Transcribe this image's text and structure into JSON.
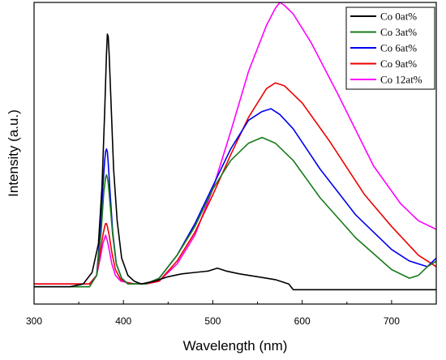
{
  "chart_data": {
    "type": "line",
    "title": "",
    "xlabel": "Wavelength (nm)",
    "ylabel": "Intensity (a.u.)",
    "xlim": [
      300,
      750
    ],
    "ylim": [
      -0.05,
      1.0
    ],
    "x_ticks": [
      300,
      400,
      500,
      600,
      700
    ],
    "x_tick_labels": [
      "300",
      "400",
      "500",
      "600",
      "700"
    ],
    "y_ticks_shown": false,
    "grid": false,
    "legend_position": "top-right",
    "series": [
      {
        "name": "Co 0at%",
        "color": "#000000",
        "x": [
          300,
          340,
          355,
          365,
          372,
          376,
          379,
          381,
          382,
          383,
          384,
          386,
          389,
          393,
          398,
          405,
          412,
          420,
          435,
          450,
          465,
          480,
          495,
          505,
          515,
          530,
          550,
          570,
          585,
          590,
          600,
          650,
          700,
          750
        ],
        "y": [
          0.01,
          0.01,
          0.02,
          0.06,
          0.16,
          0.36,
          0.62,
          0.82,
          0.89,
          0.88,
          0.82,
          0.66,
          0.42,
          0.24,
          0.11,
          0.05,
          0.03,
          0.02,
          0.03,
          0.045,
          0.055,
          0.06,
          0.065,
          0.075,
          0.065,
          0.055,
          0.045,
          0.035,
          0.02,
          0.0,
          0.0,
          0.0,
          0.0,
          0.0
        ]
      },
      {
        "name": "Co 3at%",
        "color": "#1a7a1a",
        "x": [
          300,
          340,
          362,
          370,
          375,
          378,
          380,
          381,
          382,
          383,
          385,
          388,
          392,
          398,
          405,
          415,
          425,
          440,
          460,
          480,
          500,
          520,
          540,
          555,
          570,
          590,
          620,
          660,
          700,
          720,
          730,
          740,
          750
        ],
        "y": [
          0.01,
          0.01,
          0.01,
          0.05,
          0.2,
          0.34,
          0.39,
          0.4,
          0.39,
          0.37,
          0.3,
          0.19,
          0.09,
          0.04,
          0.02,
          0.02,
          0.02,
          0.04,
          0.12,
          0.22,
          0.35,
          0.45,
          0.51,
          0.53,
          0.51,
          0.45,
          0.32,
          0.18,
          0.07,
          0.04,
          0.05,
          0.08,
          0.1
        ]
      },
      {
        "name": "Co 6at%",
        "color": "#0000ee",
        "x": [
          300,
          340,
          362,
          370,
          374,
          377,
          379,
          380,
          381,
          382,
          383,
          385,
          388,
          392,
          398,
          405,
          415,
          425,
          440,
          460,
          480,
          500,
          520,
          540,
          555,
          565,
          575,
          590,
          620,
          660,
          700,
          720,
          740,
          750
        ],
        "y": [
          0.01,
          0.01,
          0.01,
          0.05,
          0.2,
          0.36,
          0.45,
          0.48,
          0.49,
          0.48,
          0.44,
          0.34,
          0.2,
          0.09,
          0.04,
          0.02,
          0.02,
          0.02,
          0.04,
          0.12,
          0.23,
          0.36,
          0.49,
          0.59,
          0.62,
          0.63,
          0.61,
          0.56,
          0.42,
          0.26,
          0.14,
          0.1,
          0.08,
          0.11
        ]
      },
      {
        "name": "Co 9at%",
        "color": "#ee0000",
        "x": [
          300,
          340,
          362,
          370,
          374,
          377,
          379,
          380,
          381,
          382,
          384,
          387,
          391,
          397,
          404,
          412,
          425,
          440,
          460,
          480,
          500,
          520,
          540,
          560,
          570,
          580,
          600,
          630,
          670,
          700,
          730,
          750
        ],
        "y": [
          0.02,
          0.02,
          0.02,
          0.05,
          0.13,
          0.19,
          0.22,
          0.23,
          0.23,
          0.22,
          0.19,
          0.13,
          0.07,
          0.035,
          0.025,
          0.02,
          0.02,
          0.03,
          0.1,
          0.2,
          0.33,
          0.47,
          0.6,
          0.7,
          0.72,
          0.71,
          0.65,
          0.52,
          0.33,
          0.22,
          0.12,
          0.08
        ]
      },
      {
        "name": "Co 12at%",
        "color": "#ff00ff",
        "x": [
          300,
          340,
          362,
          370,
          374,
          377,
          379,
          380,
          381,
          382,
          384,
          387,
          391,
          397,
          404,
          412,
          425,
          440,
          460,
          480,
          500,
          520,
          540,
          560,
          570,
          575,
          580,
          590,
          610,
          640,
          680,
          710,
          730,
          750
        ],
        "y": [
          0.02,
          0.02,
          0.02,
          0.05,
          0.11,
          0.16,
          0.18,
          0.19,
          0.18,
          0.17,
          0.14,
          0.09,
          0.05,
          0.03,
          0.025,
          0.02,
          0.02,
          0.03,
          0.09,
          0.19,
          0.35,
          0.55,
          0.76,
          0.92,
          0.98,
          1.0,
          0.99,
          0.96,
          0.86,
          0.68,
          0.43,
          0.3,
          0.24,
          0.21
        ]
      }
    ]
  }
}
